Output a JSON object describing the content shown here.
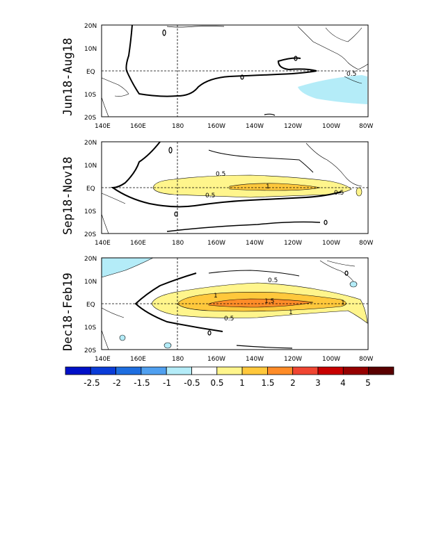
{
  "panels": [
    {
      "title": "Jun18-Aug18",
      "contour_labels": [
        "0.5"
      ]
    },
    {
      "title": "Sep18-Nov18",
      "contour_labels": [
        "0.5",
        "1",
        "0.5",
        "0.5"
      ]
    },
    {
      "title": "Dec18-Feb19",
      "contour_labels": [
        "0.5",
        "1",
        "1.5",
        "1",
        "1",
        "0.5"
      ]
    }
  ],
  "axes": {
    "lon_ticks": [
      "140E",
      "160E",
      "180",
      "160W",
      "140W",
      "120W",
      "100W",
      "80W"
    ],
    "lat_ticks": [
      "20N",
      "10N",
      "EQ",
      "10S",
      "20S"
    ]
  },
  "colorbar": {
    "labels": [
      "-2.5",
      "-2",
      "-1.5",
      "-1",
      "-0.5",
      "0.5",
      "1",
      "1.5",
      "2",
      "3",
      "4",
      "5"
    ],
    "colors": [
      "#0010c8",
      "#0a3cd8",
      "#1e6ee0",
      "#50a0f0",
      "#b4ecf8",
      "#ffffff",
      "#fff58c",
      "#ffc83c",
      "#ff8c28",
      "#f04632",
      "#c80000",
      "#960000",
      "#5a0000"
    ]
  },
  "colors": {
    "positive_light": "#fff58c",
    "positive_mid": "#ffc83c",
    "positive_high": "#ff8c28",
    "negative_light": "#b4ecf8"
  }
}
